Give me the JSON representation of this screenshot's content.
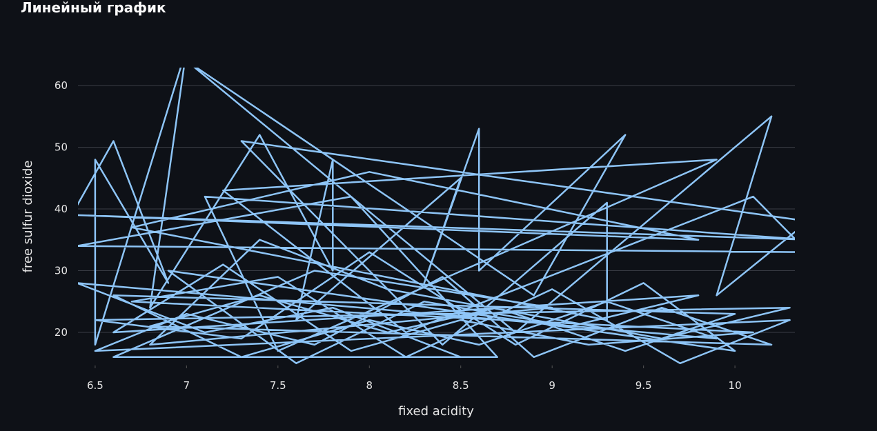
{
  "chart_data": {
    "type": "line",
    "title": "Линейный график",
    "x_label": "fixed acidity",
    "y_label": "free sulfur dioxide",
    "xlim": [
      6.406,
      10.328
    ],
    "ylim": [
      14.64,
      62.9
    ],
    "xticks": [
      6.5,
      7,
      7.5,
      8,
      8.5,
      9,
      9.5,
      10
    ],
    "yticks": [
      20,
      30,
      40,
      50,
      60
    ],
    "grid": true,
    "series": [
      {
        "name": "free sulfur dioxide",
        "color": "#8ec5f7",
        "x": [
          6.4,
          6.6,
          6.9,
          6.5,
          6.5,
          7.0,
          6.8,
          7.4,
          7.8,
          7.8,
          7.6,
          8.5,
          8.3,
          8.6,
          8.6,
          9.4,
          8.9,
          7.0,
          8.8,
          10.2,
          9.9,
          10.4,
          7.3,
          8.4,
          9.3,
          9.3,
          6.7,
          8.0,
          9.8,
          6.4,
          10.4,
          7.1,
          7.5,
          9.9,
          7.2,
          8.2,
          10.1,
          10.4,
          6.4,
          7.9,
          8.7,
          6.6,
          7.7,
          9.0,
          6.8,
          7.4,
          8.1,
          9.6,
          10.3,
          6.5,
          7.3,
          8.0,
          8.8,
          9.5,
          10.0,
          6.9,
          7.6,
          8.3,
          9.1,
          9.8,
          6.6,
          7.2,
          7.9,
          8.5,
          9.2,
          10.1,
          6.7,
          7.5,
          8.2,
          9.0,
          9.7,
          10.3,
          6.5,
          7.0,
          7.7,
          8.4,
          8.9,
          9.6,
          10.2,
          6.8,
          7.4,
          8.1,
          8.7,
          9.4,
          10.0,
          6.6,
          7.3,
          8.0,
          8.6,
          9.3,
          9.9,
          6.4,
          7.1,
          7.8,
          8.5
        ],
        "values": [
          40.5,
          51,
          28,
          48,
          18,
          66,
          24,
          52,
          30,
          48,
          22,
          45,
          28,
          53,
          30,
          52,
          26,
          64,
          20,
          55,
          26,
          38,
          51,
          18,
          41,
          22,
          37,
          46,
          35,
          39,
          35,
          42,
          17,
          48,
          43,
          20,
          42,
          33,
          34,
          42,
          16,
          16,
          30,
          24,
          18,
          35,
          27,
          19,
          24,
          22,
          19,
          33,
          18,
          28,
          17,
          30,
          15,
          25,
          21,
          26,
          20,
          31,
          17,
          22,
          18,
          20,
          25,
          29,
          16,
          27,
          15,
          22,
          17,
          23,
          18,
          29,
          16,
          24,
          18,
          21,
          26,
          20,
          24,
          17,
          23,
          26,
          16,
          22,
          18,
          25,
          19,
          28,
          20,
          24,
          16
        ]
      }
    ]
  }
}
